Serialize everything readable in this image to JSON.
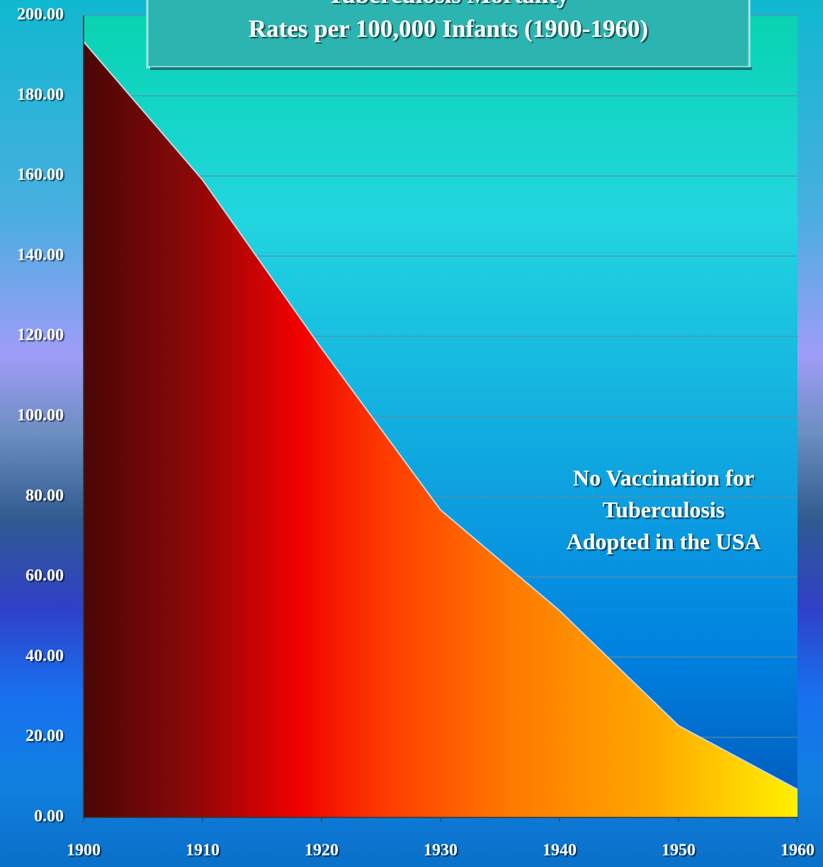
{
  "chart_data": {
    "type": "area",
    "title": [
      "Tuberculosis Mortality",
      "Rates per 100,000 Infants (1900-1960)"
    ],
    "annotation": [
      "No Vaccination for",
      "Tuberculosis",
      "Adopted in the USA"
    ],
    "x": [
      1900,
      1910,
      1920,
      1930,
      1940,
      1950,
      1960
    ],
    "series": [
      {
        "values": [
          193.5,
          159,
          117,
          76.7,
          51.6,
          22.9,
          7
        ]
      }
    ],
    "xlim": [
      1900,
      1960
    ],
    "xticks": [
      1900,
      1910,
      1920,
      1930,
      1940,
      1950,
      1960
    ],
    "ylim": [
      0,
      200
    ],
    "yticks": [
      {
        "value": 0,
        "label": "0.00"
      },
      {
        "value": 20,
        "label": "20.00"
      },
      {
        "value": 40,
        "label": "40.00"
      },
      {
        "value": 60,
        "label": "60.00"
      },
      {
        "value": 80,
        "label": "80.00"
      },
      {
        "value": 100,
        "label": "100.00"
      },
      {
        "value": 120,
        "label": "120.00"
      },
      {
        "value": 140,
        "label": "140.00"
      },
      {
        "value": 160,
        "label": "160.00"
      },
      {
        "value": 180,
        "label": "180.00"
      },
      {
        "value": 200,
        "label": "200.00"
      }
    ],
    "grid": true
  }
}
